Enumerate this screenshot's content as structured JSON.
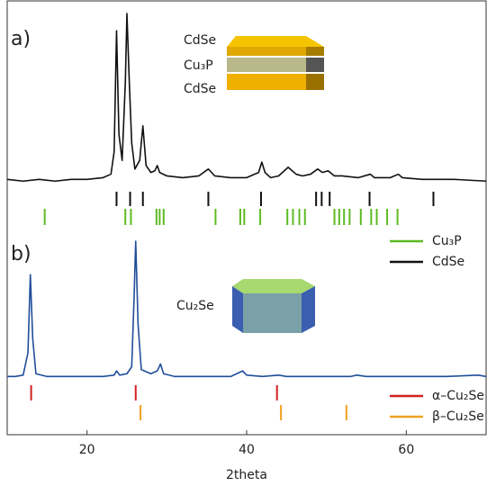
{
  "chart_data": [
    {
      "type": "line",
      "label": "a)",
      "color": "#111111",
      "xlim": [
        10,
        70
      ],
      "ylim": [
        0,
        100
      ],
      "inset_labels": [
        "CdSe",
        "Cu₃P",
        "CdSe"
      ],
      "x": [
        10,
        12,
        14,
        16,
        18,
        20,
        22,
        23,
        23.4,
        23.7,
        24.0,
        24.4,
        24.8,
        25.0,
        25.3,
        25.6,
        26.0,
        26.6,
        27.0,
        27.4,
        28.0,
        28.5,
        28.8,
        29.1,
        30,
        32,
        34,
        35.2,
        35.6,
        36,
        38,
        40,
        41.5,
        41.9,
        42.3,
        43,
        44,
        45.2,
        45.7,
        46.2,
        47,
        48,
        48.9,
        49.5,
        50.2,
        51,
        52,
        54,
        55.5,
        56,
        58,
        59,
        59.5,
        62,
        64,
        66,
        70
      ],
      "values": [
        4,
        3,
        4,
        3,
        4,
        4,
        5,
        7,
        20,
        90,
        30,
        15,
        60,
        100,
        60,
        25,
        10,
        15,
        35,
        12,
        8,
        9,
        12,
        8,
        6,
        5,
        6,
        10,
        8,
        6,
        5,
        5,
        8,
        14,
        8,
        5,
        6,
        11,
        9,
        7,
        6,
        7,
        10,
        8,
        9,
        6,
        6,
        5,
        7,
        5,
        5,
        7,
        5,
        4,
        4,
        4,
        3
      ],
      "references": [
        {
          "name": "Cu₃P",
          "color": "#5dbb22",
          "positions": [
            14.7,
            24.8,
            25.5,
            28.7,
            29.1,
            29.6,
            36.1,
            39.2,
            39.7,
            41.7,
            45.1,
            45.8,
            46.6,
            47.3,
            51.0,
            51.6,
            52.2,
            52.9,
            54.3,
            55.6,
            56.3,
            57.6,
            58.9
          ]
        },
        {
          "name": "CdSe",
          "color": "#111111",
          "positions": [
            23.7,
            25.4,
            27.0,
            35.2,
            41.8,
            48.7,
            49.4,
            50.4,
            55.4,
            63.4
          ]
        }
      ]
    },
    {
      "type": "line",
      "label": "b)",
      "color": "#1f4e9a",
      "xlim": [
        10,
        70
      ],
      "ylim": [
        0,
        100
      ],
      "xticks": [
        20,
        40,
        60
      ],
      "xlabel": "2theta",
      "inset_labels": [
        "Cu₂Se"
      ],
      "x": [
        10,
        11,
        12,
        12.6,
        12.9,
        13.2,
        13.6,
        15,
        18,
        20,
        22,
        23.4,
        23.7,
        24.1,
        25,
        25.6,
        25.9,
        26.1,
        26.4,
        26.8,
        28,
        28.8,
        29.2,
        29.6,
        31,
        35,
        38,
        39.5,
        40,
        42,
        44,
        45,
        48,
        50,
        53,
        53.8,
        55,
        60,
        65,
        69,
        70
      ],
      "values": [
        3,
        3,
        4,
        20,
        76,
        30,
        5,
        3,
        3,
        3,
        3,
        4,
        7,
        4,
        5,
        10,
        60,
        100,
        40,
        8,
        5,
        7,
        12,
        5,
        3,
        3,
        3,
        7,
        4,
        3,
        4,
        3,
        3,
        3,
        3,
        4,
        3,
        3,
        3,
        4,
        3
      ],
      "references": [
        {
          "name": "α–Cu₂Se",
          "color": "#d42020",
          "positions": [
            13.0,
            26.1,
            43.8
          ]
        },
        {
          "name": "β–Cu₂Se",
          "color": "#f0a020",
          "positions": [
            26.7,
            44.3,
            52.5
          ]
        }
      ]
    }
  ]
}
